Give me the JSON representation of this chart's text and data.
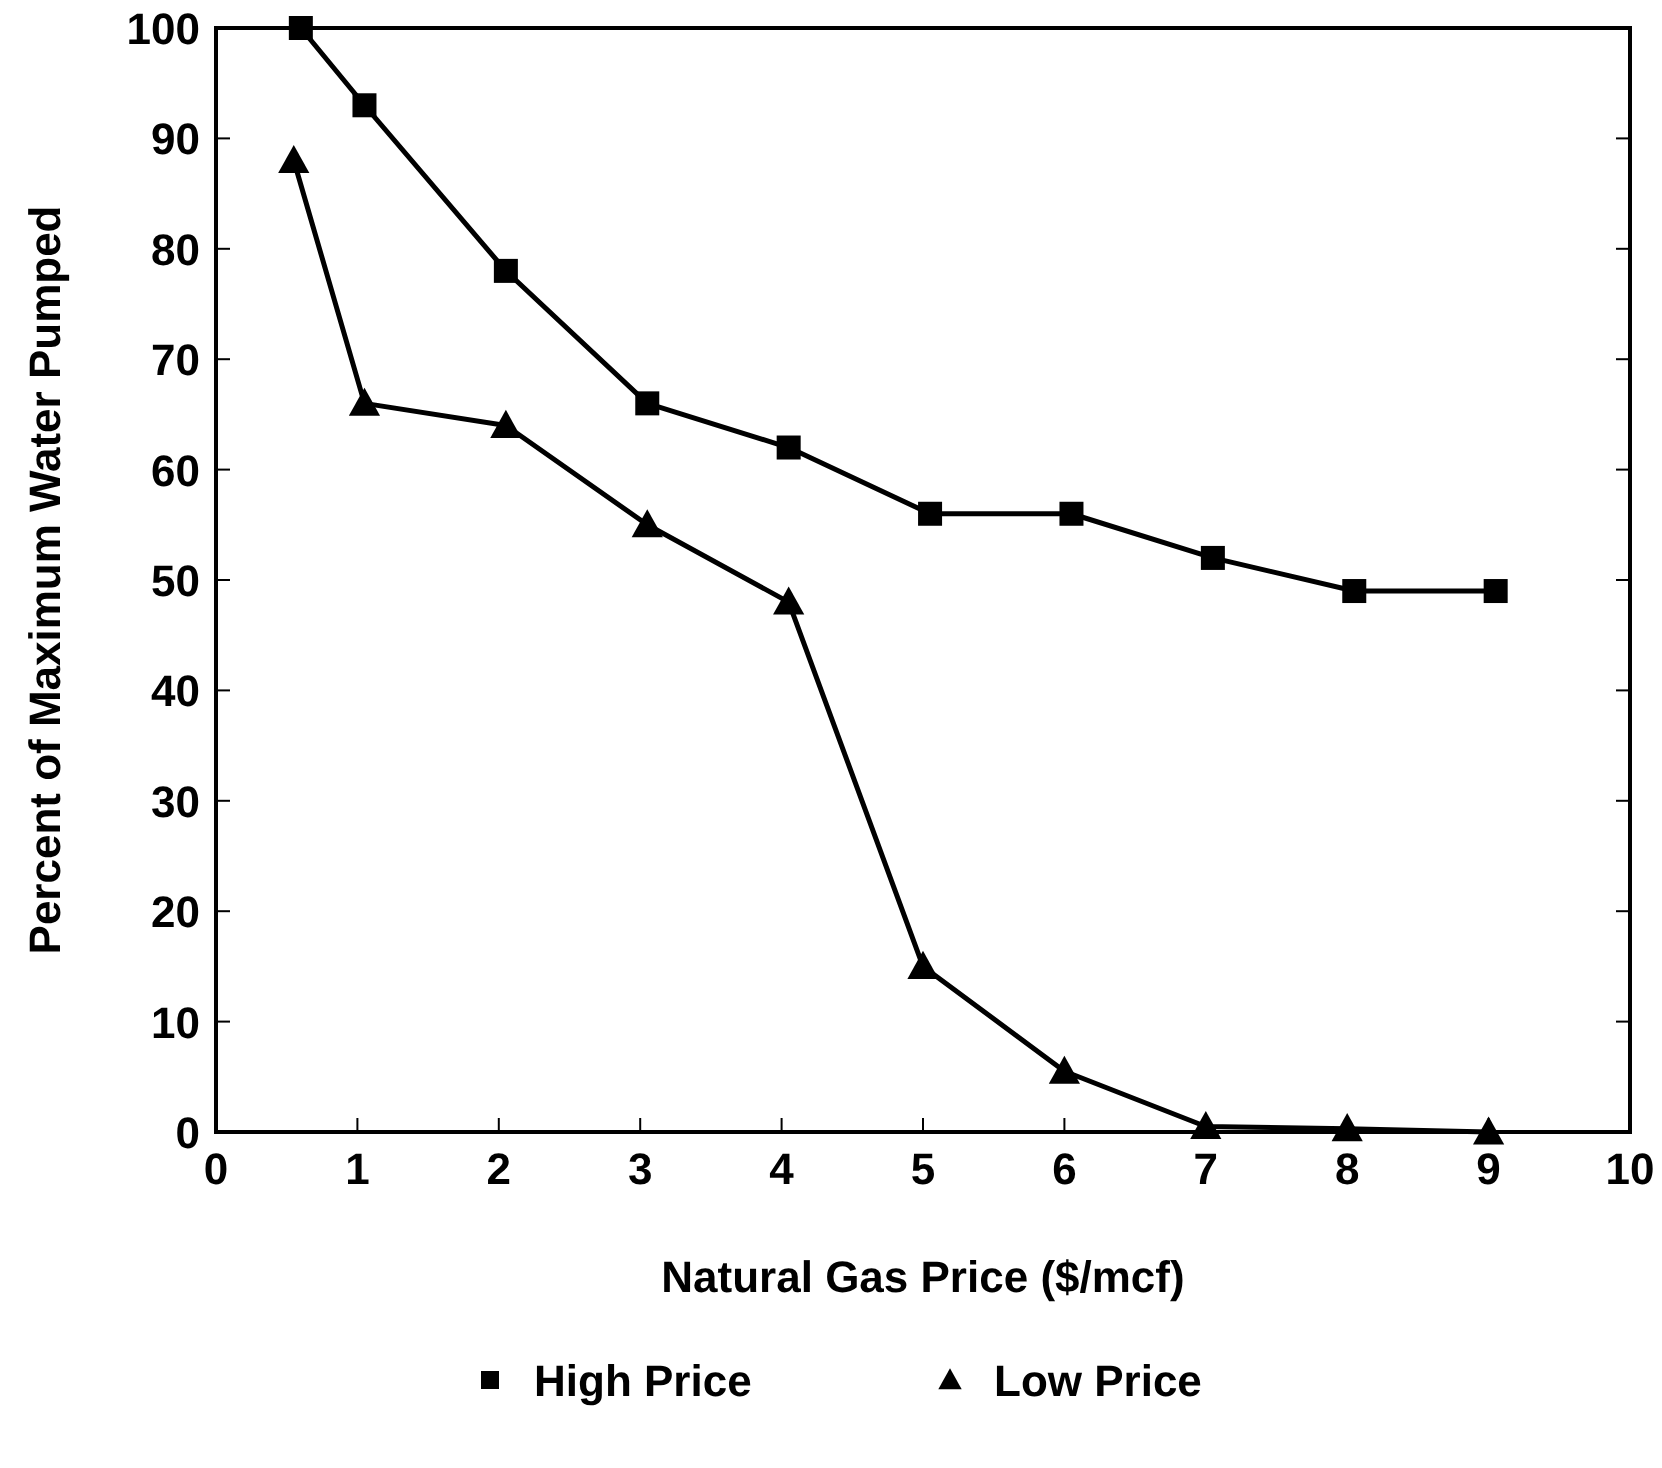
{
  "chart_data": {
    "type": "line",
    "xlabel": "Natural Gas Price ($/mcf)",
    "ylabel": "Percent of Maximum Water Pumped",
    "xlim": [
      0,
      10
    ],
    "xticks": [
      0,
      1,
      2,
      3,
      4,
      5,
      6,
      7,
      8,
      9,
      10
    ],
    "ylim": [
      0,
      100
    ],
    "yticks": [
      0,
      10,
      20,
      30,
      40,
      50,
      60,
      70,
      80,
      90,
      100
    ],
    "grid": false,
    "legend": "bottom",
    "line_style": "solid",
    "series": [
      {
        "name": "High Price",
        "color": "#000000",
        "marker": "square",
        "x": [
          0.6,
          1.05,
          2.05,
          3.05,
          4.05,
          5.05,
          6.05,
          7.05,
          8.05,
          9.05
        ],
        "values": [
          100,
          93,
          78,
          66,
          62,
          56,
          56,
          52,
          49,
          49
        ]
      },
      {
        "name": "Low Price",
        "color": "#000000",
        "marker": "triangle",
        "x": [
          0.55,
          1.05,
          2.05,
          3.05,
          4.05,
          5.0,
          6.0,
          7.0,
          8.0,
          9.0
        ],
        "values": [
          88,
          66,
          64,
          55,
          48,
          15,
          5.5,
          0.5,
          0.3,
          0
        ]
      }
    ]
  }
}
